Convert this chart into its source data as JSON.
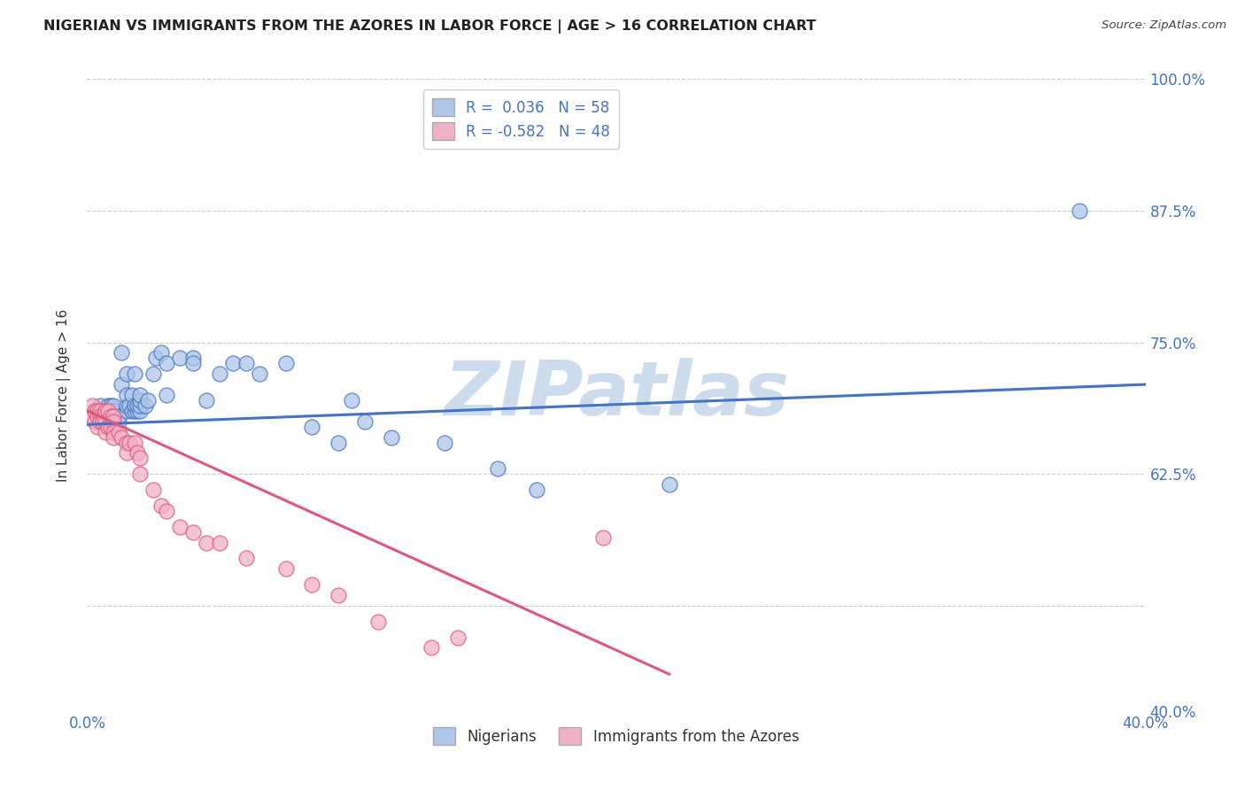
{
  "title": "NIGERIAN VS IMMIGRANTS FROM THE AZORES IN LABOR FORCE | AGE > 16 CORRELATION CHART",
  "source": "Source: ZipAtlas.com",
  "ylabel": "In Labor Force | Age > 16",
  "xmin": 0.0,
  "xmax": 0.4,
  "ymin": 0.4,
  "ymax": 1.0,
  "ytick_positions": [
    0.4,
    0.5,
    0.625,
    0.75,
    0.875,
    1.0
  ],
  "ytick_labels": [
    "40.0%",
    "",
    "62.5%",
    "75.0%",
    "87.5%",
    "100.0%"
  ],
  "xtick_positions": [
    0.0,
    0.05,
    0.1,
    0.15,
    0.2,
    0.25,
    0.3,
    0.35,
    0.4
  ],
  "xtick_labels": [
    "0.0%",
    "",
    "",
    "",
    "",
    "",
    "",
    "",
    "40.0%"
  ],
  "blue_R": 0.036,
  "blue_N": 58,
  "pink_R": -0.582,
  "pink_N": 48,
  "blue_color": "#aec6e8",
  "pink_color": "#f0b0c8",
  "blue_line_color": "#4472c4",
  "pink_line_color": "#e05878",
  "legend_label_blue": "Nigerians",
  "legend_label_pink": "Immigrants from the Azores",
  "watermark": "ZIPatlas",
  "watermark_color": "#cddcec",
  "blue_line_x0": 0.0,
  "blue_line_y0": 0.672,
  "blue_line_x1": 0.4,
  "blue_line_y1": 0.71,
  "pink_line_x0": 0.0,
  "pink_line_y0": 0.685,
  "pink_line_x1": 0.22,
  "pink_line_y1": 0.435,
  "blue_scatter_x": [
    0.003,
    0.005,
    0.005,
    0.006,
    0.007,
    0.008,
    0.008,
    0.009,
    0.009,
    0.01,
    0.01,
    0.01,
    0.012,
    0.012,
    0.013,
    0.013,
    0.015,
    0.015,
    0.015,
    0.015,
    0.016,
    0.017,
    0.017,
    0.018,
    0.018,
    0.018,
    0.019,
    0.019,
    0.02,
    0.02,
    0.02,
    0.02,
    0.022,
    0.023,
    0.025,
    0.026,
    0.028,
    0.03,
    0.03,
    0.035,
    0.04,
    0.04,
    0.045,
    0.05,
    0.055,
    0.06,
    0.065,
    0.075,
    0.085,
    0.095,
    0.1,
    0.105,
    0.115,
    0.135,
    0.155,
    0.17,
    0.22,
    0.375
  ],
  "blue_scatter_y": [
    0.685,
    0.685,
    0.69,
    0.675,
    0.68,
    0.685,
    0.69,
    0.685,
    0.69,
    0.685,
    0.685,
    0.69,
    0.675,
    0.68,
    0.71,
    0.74,
    0.685,
    0.69,
    0.7,
    0.72,
    0.69,
    0.685,
    0.7,
    0.685,
    0.69,
    0.72,
    0.685,
    0.69,
    0.685,
    0.69,
    0.695,
    0.7,
    0.69,
    0.695,
    0.72,
    0.735,
    0.74,
    0.7,
    0.73,
    0.735,
    0.735,
    0.73,
    0.695,
    0.72,
    0.73,
    0.73,
    0.72,
    0.73,
    0.67,
    0.655,
    0.695,
    0.675,
    0.66,
    0.655,
    0.63,
    0.61,
    0.615,
    0.875
  ],
  "pink_scatter_x": [
    0.002,
    0.002,
    0.003,
    0.003,
    0.004,
    0.004,
    0.004,
    0.005,
    0.005,
    0.005,
    0.006,
    0.006,
    0.007,
    0.007,
    0.007,
    0.008,
    0.008,
    0.009,
    0.009,
    0.009,
    0.01,
    0.01,
    0.01,
    0.01,
    0.012,
    0.013,
    0.015,
    0.015,
    0.016,
    0.018,
    0.019,
    0.02,
    0.02,
    0.025,
    0.028,
    0.03,
    0.035,
    0.04,
    0.045,
    0.05,
    0.06,
    0.075,
    0.085,
    0.095,
    0.11,
    0.13,
    0.14,
    0.195
  ],
  "pink_scatter_y": [
    0.69,
    0.68,
    0.685,
    0.675,
    0.685,
    0.68,
    0.67,
    0.685,
    0.68,
    0.675,
    0.68,
    0.675,
    0.685,
    0.675,
    0.665,
    0.685,
    0.67,
    0.68,
    0.675,
    0.67,
    0.68,
    0.675,
    0.665,
    0.66,
    0.665,
    0.66,
    0.655,
    0.645,
    0.655,
    0.655,
    0.645,
    0.64,
    0.625,
    0.61,
    0.595,
    0.59,
    0.575,
    0.57,
    0.56,
    0.56,
    0.545,
    0.535,
    0.52,
    0.51,
    0.485,
    0.46,
    0.47,
    0.565
  ]
}
